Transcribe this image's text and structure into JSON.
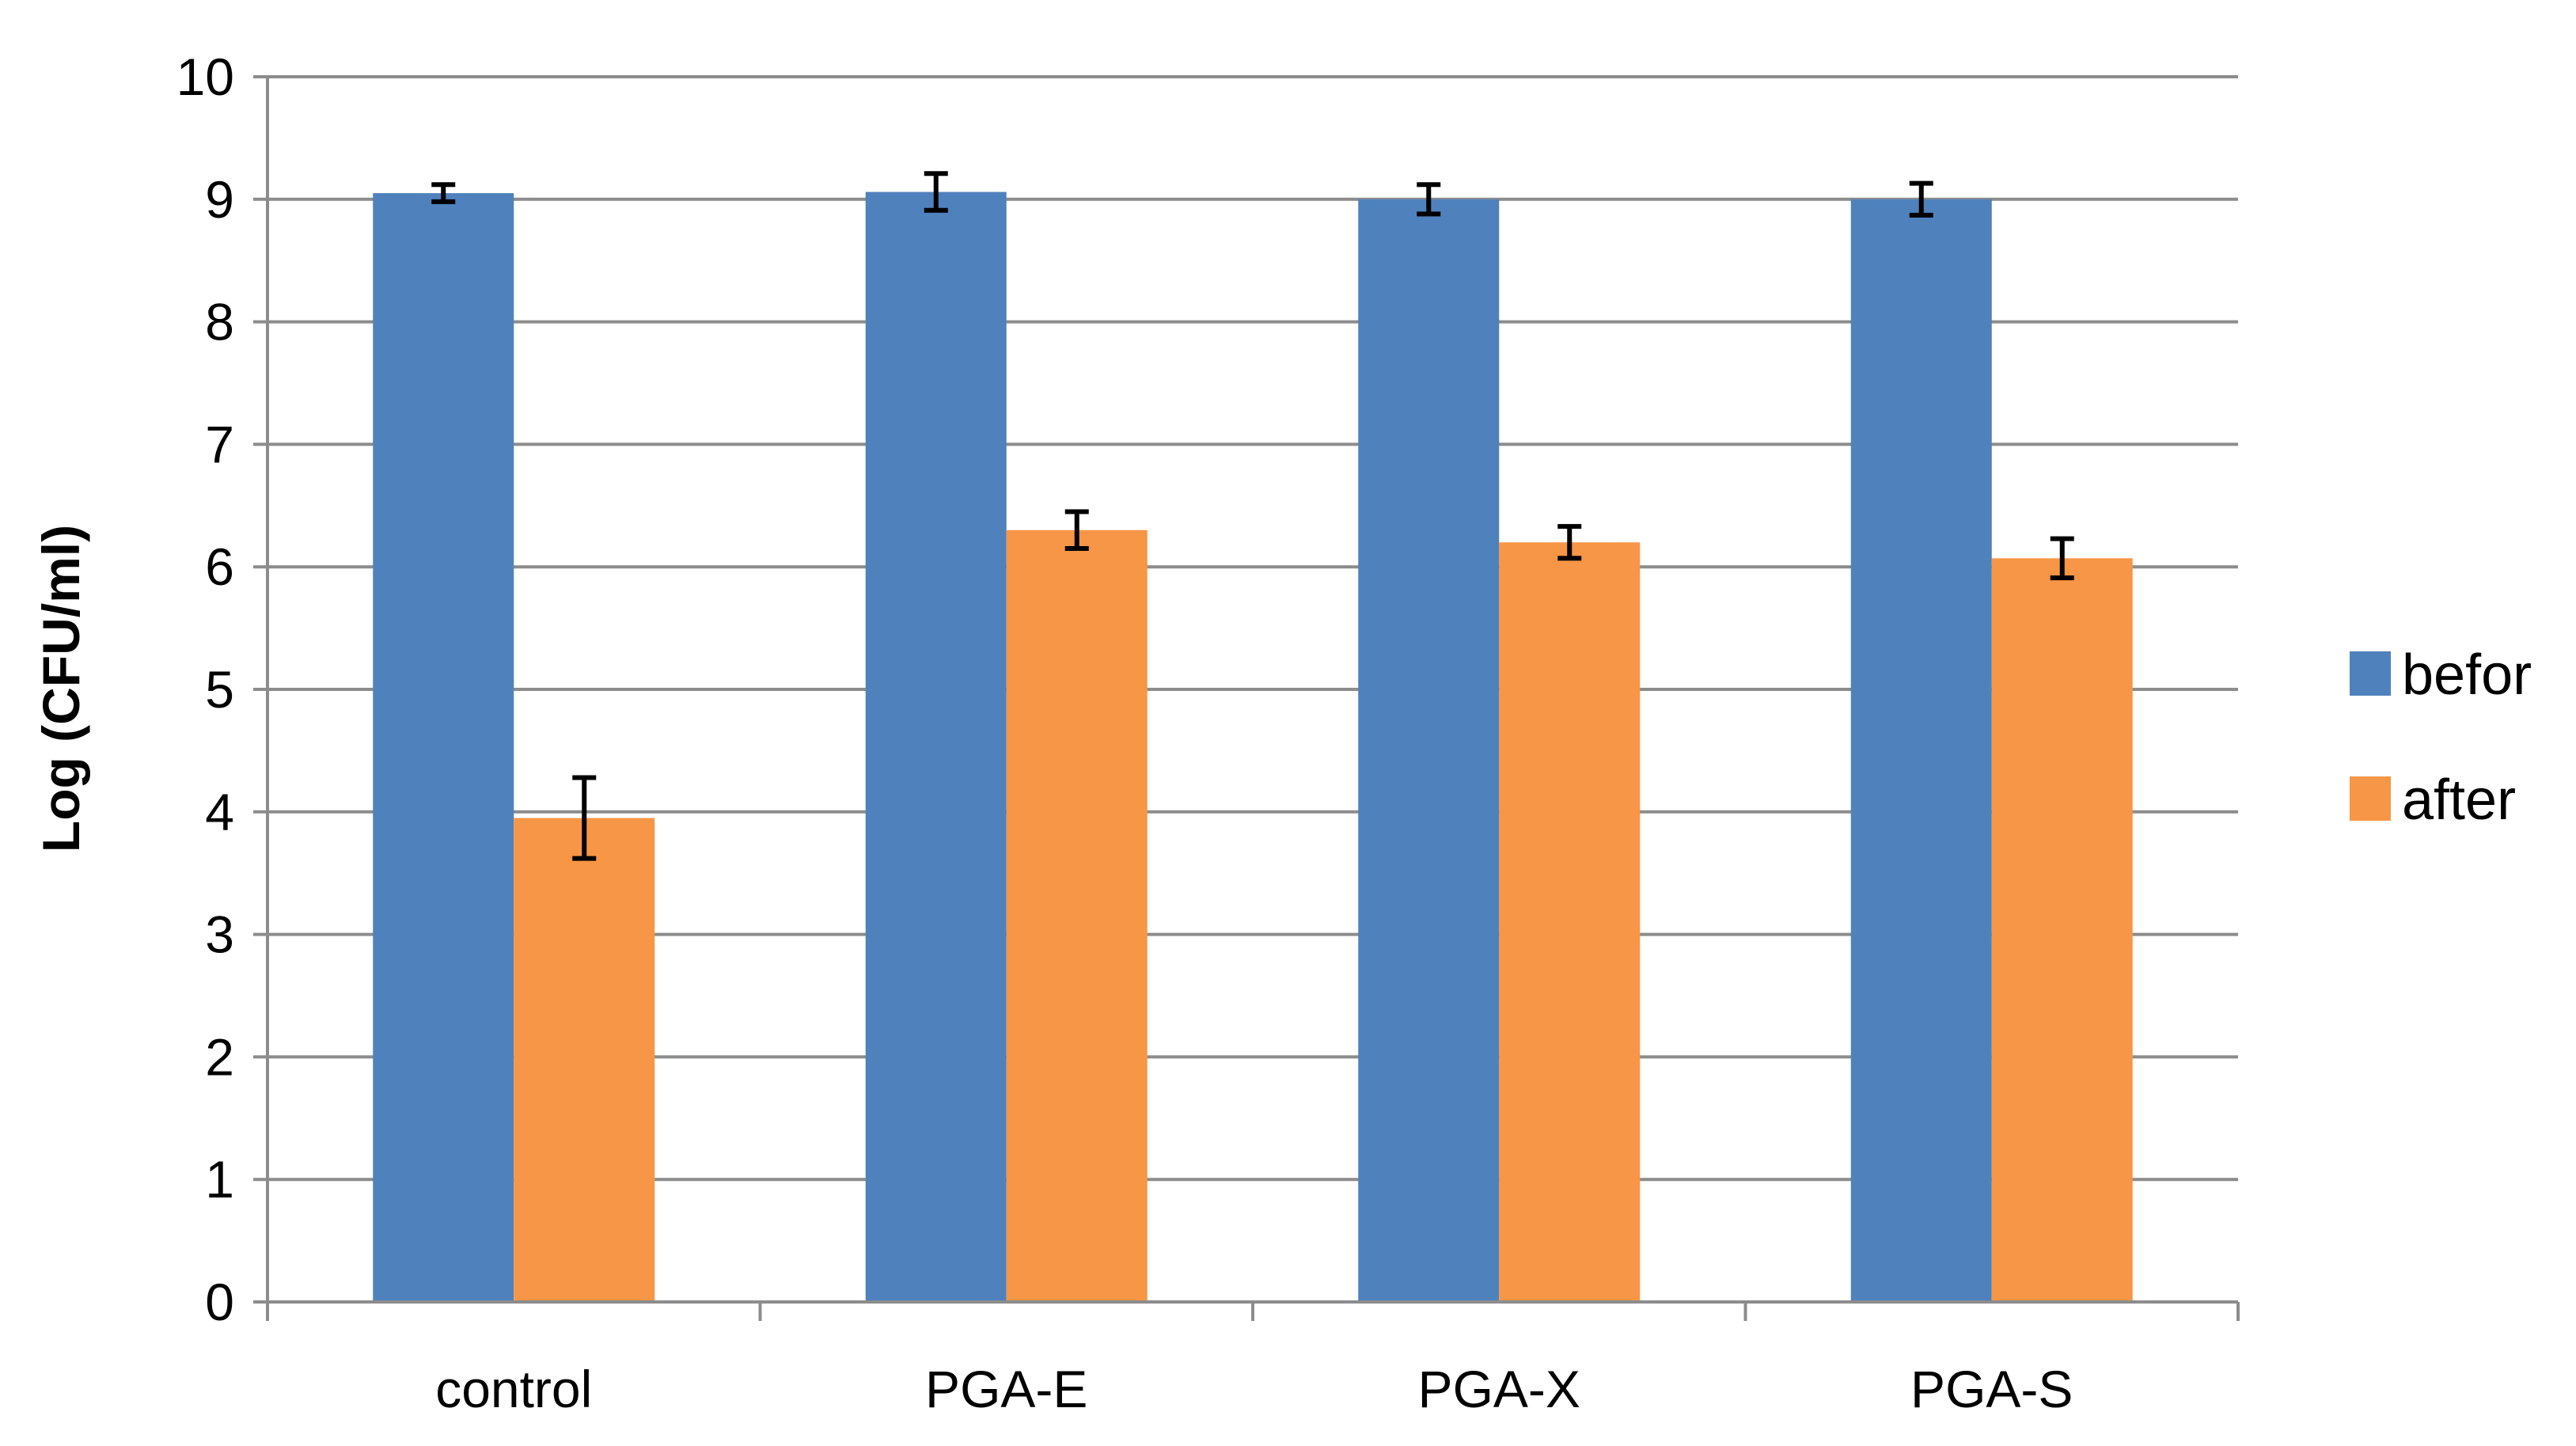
{
  "chart_data": {
    "type": "bar",
    "title": "",
    "xlabel": "",
    "ylabel": "Log (CFU/ml)",
    "ylim": [
      0,
      10
    ],
    "yticks": [
      0,
      1,
      2,
      3,
      4,
      5,
      6,
      7,
      8,
      9,
      10
    ],
    "grid": true,
    "legend_position": "right",
    "categories": [
      "control",
      "PGA-E",
      "PGA-X",
      "PGA-S"
    ],
    "series": [
      {
        "name": "befor",
        "color": "#4F81BD",
        "values": [
          9.05,
          9.06,
          9.0,
          9.0
        ],
        "errors": [
          0.07,
          0.15,
          0.12,
          0.13
        ]
      },
      {
        "name": "after",
        "color": "#F79646",
        "values": [
          3.95,
          6.3,
          6.2,
          6.07
        ],
        "errors": [
          0.33,
          0.15,
          0.13,
          0.16
        ]
      }
    ]
  }
}
